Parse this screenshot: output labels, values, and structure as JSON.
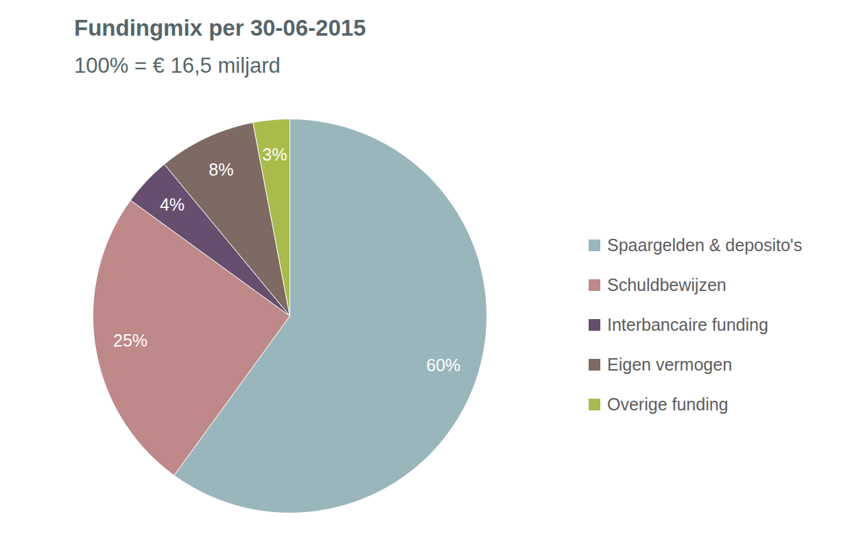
{
  "chart_data": {
    "type": "pie",
    "title": "Fundingmix per 30-06-2015",
    "subtitle": "100% = € 16,5 miljard",
    "categories": [
      "Spaargelden & deposito's",
      "Schuldbewijzen",
      "Interbancaire funding",
      "Eigen vermogen",
      "Overige funding"
    ],
    "values": [
      60,
      25,
      4,
      8,
      3
    ],
    "value_labels": [
      "60%",
      "25%",
      "4%",
      "8%",
      "3%"
    ],
    "colors": [
      "#98b6bc",
      "#bf8889",
      "#664e6e",
      "#7d6a63",
      "#a9bb4a"
    ],
    "data_labels": true,
    "legend": "right"
  }
}
